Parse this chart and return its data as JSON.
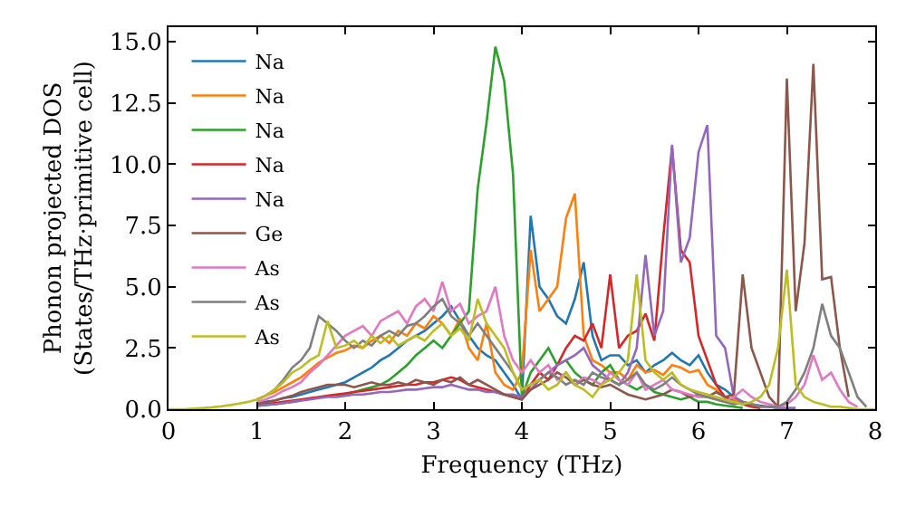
{
  "chart_data": {
    "type": "line",
    "xlabel": "Frequency (THz)",
    "ylabel": "Phonon projected DOS\n(States/THz·primitive cell)",
    "xlim": [
      0,
      8
    ],
    "ylim": [
      0,
      15.6
    ],
    "xticks": [
      0,
      1,
      2,
      3,
      4,
      5,
      6,
      7,
      8
    ],
    "yticks": [
      {
        "value": 0,
        "label": "0.0"
      },
      {
        "value": 2.5,
        "label": "2.5"
      },
      {
        "value": 5,
        "label": "5.0"
      },
      {
        "value": 7.5,
        "label": "7.5"
      },
      {
        "value": 10,
        "label": "10.0"
      },
      {
        "value": 12.5,
        "label": "12.5"
      },
      {
        "value": 15,
        "label": "15.0"
      }
    ],
    "grid": false,
    "legend": "top left",
    "marker": "none",
    "line_style": "solid",
    "x": [
      0,
      0.1,
      0.2,
      0.3,
      0.4,
      0.5,
      0.6,
      0.7,
      0.8,
      0.9,
      1,
      1.1,
      1.2,
      1.3,
      1.4,
      1.5,
      1.6,
      1.7,
      1.8,
      1.9,
      2,
      2.1,
      2.2,
      2.3,
      2.4,
      2.5,
      2.6,
      2.7,
      2.8,
      2.9,
      3,
      3.1,
      3.2,
      3.3,
      3.4,
      3.5,
      3.6,
      3.7,
      3.8,
      3.9,
      4,
      4.1,
      4.2,
      4.3,
      4.4,
      4.5,
      4.6,
      4.7,
      4.8,
      4.9,
      5,
      5.1,
      5.2,
      5.3,
      5.4,
      5.5,
      5.6,
      5.7,
      5.8,
      5.9,
      6,
      6.1,
      6.2,
      6.3,
      6.4,
      6.5,
      6.6,
      6.7,
      6.8,
      6.9,
      7,
      7.1,
      7.2,
      7.3,
      7.4,
      7.5,
      7.6,
      7.7,
      7.8,
      7.9,
      8
    ],
    "series": [
      {
        "name": "Na",
        "color": "#1f77b4",
        "values": [
          null,
          null,
          null,
          null,
          null,
          null,
          null,
          null,
          null,
          null,
          0.22,
          0.3,
          0.35,
          0.45,
          0.5,
          0.6,
          0.7,
          0.8,
          0.9,
          1.0,
          1.1,
          1.3,
          1.5,
          1.7,
          2.0,
          2.2,
          2.5,
          2.8,
          3.0,
          3.2,
          3.5,
          3.8,
          4.2,
          3.6,
          3.0,
          2.5,
          2.2,
          2.0,
          1.5,
          1.0,
          0.4,
          7.9,
          5.0,
          4.5,
          3.8,
          3.5,
          4.5,
          6.0,
          3.0,
          2.0,
          2.2,
          2.2,
          1.8,
          2.0,
          1.5,
          1.8,
          2.0,
          2.3,
          2.0,
          1.8,
          2.2,
          1.5,
          1.0,
          0.8,
          0.5,
          0.3,
          0.2,
          0.15,
          0.1,
          0.05,
          null,
          null,
          null,
          null,
          null,
          null,
          null,
          null,
          null,
          null,
          null
        ]
      },
      {
        "name": "Na",
        "color": "#ff7f0e",
        "values": [
          null,
          null,
          null,
          null,
          null,
          null,
          null,
          null,
          null,
          null,
          0.4,
          0.55,
          0.7,
          0.9,
          1.1,
          1.3,
          1.6,
          1.9,
          2.1,
          2.3,
          2.4,
          2.6,
          2.5,
          2.8,
          3.0,
          2.7,
          3.2,
          3.0,
          3.5,
          3.3,
          3.8,
          3.5,
          3.0,
          3.7,
          2.5,
          2.0,
          3.5,
          1.5,
          1.0,
          0.8,
          1.5,
          6.5,
          4.0,
          4.5,
          5.0,
          7.8,
          8.8,
          3.0,
          2.0,
          1.8,
          1.5,
          1.5,
          1.2,
          1.8,
          1.5,
          1.6,
          1.4,
          1.8,
          1.7,
          1.5,
          1.6,
          1.0,
          0.8,
          0.5,
          0.4,
          0.3,
          0.2,
          0.1,
          null,
          null,
          null,
          null,
          null,
          null,
          null,
          null,
          null,
          null,
          null,
          null,
          null
        ]
      },
      {
        "name": "Na",
        "color": "#2ca02c",
        "values": [
          null,
          null,
          null,
          null,
          null,
          null,
          null,
          null,
          null,
          null,
          0.13,
          0.17,
          0.2,
          0.25,
          0.3,
          0.35,
          null,
          null,
          null,
          0.55,
          0.6,
          0.7,
          0.8,
          0.9,
          1.0,
          1.2,
          1.5,
          1.8,
          2.2,
          2.5,
          2.8,
          2.5,
          3.0,
          3.5,
          4.0,
          9.0,
          11.7,
          14.8,
          13.4,
          9.6,
          0.5,
          1.5,
          2.0,
          2.5,
          1.8,
          2.0,
          1.5,
          1.2,
          1.0,
          1.5,
          1.8,
          1.2,
          1.0,
          0.8,
          1.0,
          0.7,
          0.6,
          0.5,
          0.4,
          0.5,
          0.3,
          0.3,
          0.2,
          0.15,
          0.1,
          0.05,
          null,
          null,
          null,
          null,
          null,
          null,
          null,
          null,
          null,
          null,
          null,
          null,
          null,
          null,
          null
        ]
      },
      {
        "name": "Na",
        "color": "#d62728",
        "values": [
          null,
          null,
          null,
          null,
          null,
          null,
          null,
          null,
          null,
          null,
          0.17,
          0.2,
          0.25,
          0.3,
          0.35,
          0.4,
          0.45,
          0.5,
          0.55,
          0.6,
          0.65,
          0.7,
          0.75,
          0.8,
          0.85,
          0.9,
          0.95,
          1.0,
          1.0,
          1.1,
          1.1,
          1.2,
          1.3,
          1.2,
          1.0,
          0.9,
          0.8,
          0.7,
          0.6,
          0.5,
          0.4,
          1.0,
          1.5,
          1.2,
          1.8,
          2.5,
          3.0,
          2.8,
          3.5,
          2.5,
          5.5,
          2.5,
          3.0,
          3.2,
          3.9,
          2.8,
          7.0,
          10.7,
          6.5,
          6.0,
          3.0,
          2.0,
          1.0,
          0.5,
          0.3,
          0.2,
          0.1,
          0.05,
          null,
          null,
          null,
          null,
          null,
          null,
          null,
          null,
          null,
          null,
          null,
          null,
          null
        ]
      },
      {
        "name": "Na",
        "color": "#9467bd",
        "values": [
          null,
          null,
          null,
          null,
          null,
          null,
          null,
          null,
          null,
          null,
          0.15,
          0.18,
          0.2,
          0.25,
          0.3,
          0.35,
          0.4,
          0.45,
          0.5,
          0.5,
          0.55,
          0.6,
          0.6,
          0.65,
          0.7,
          0.7,
          0.75,
          0.8,
          0.8,
          0.85,
          0.9,
          0.9,
          1.0,
          0.9,
          0.8,
          0.8,
          0.7,
          0.7,
          0.6,
          0.6,
          0.5,
          0.8,
          1.2,
          1.5,
          1.8,
          2.0,
          2.2,
          2.5,
          1.8,
          1.5,
          1.2,
          1.0,
          1.5,
          2.5,
          6.3,
          3.0,
          4.0,
          10.8,
          6.0,
          7.0,
          10.5,
          11.6,
          3.0,
          2.5,
          0.5,
          0.3,
          0.2,
          0.1,
          0.1,
          0.05,
          0.05,
          0.05,
          null,
          null,
          null,
          null,
          null,
          null,
          null,
          null,
          null
        ]
      },
      {
        "name": "Ge",
        "color": "#8c564b",
        "values": [
          null,
          null,
          null,
          null,
          null,
          null,
          null,
          null,
          null,
          null,
          0.22,
          0.28,
          0.35,
          0.45,
          0.55,
          0.7,
          0.8,
          0.9,
          1.0,
          1.0,
          1.0,
          0.9,
          1.0,
          1.1,
          1.0,
          1.0,
          1.1,
          1.0,
          1.2,
          1.1,
          1.0,
          1.2,
          1.1,
          1.3,
          1.0,
          1.2,
          1.0,
          0.8,
          0.6,
          0.5,
          0.4,
          0.8,
          1.0,
          1.2,
          1.5,
          1.3,
          1.0,
          1.2,
          1.0,
          0.9,
          1.0,
          0.8,
          0.6,
          0.5,
          0.4,
          0.5,
          0.6,
          0.8,
          0.7,
          0.5,
          0.6,
          0.5,
          0.7,
          0.5,
          0.6,
          5.5,
          2.5,
          1.5,
          0.5,
          0.1,
          13.5,
          4.0,
          6.8,
          14.1,
          5.3,
          5.4,
          2.5,
          0.5,
          null,
          null,
          null
        ]
      },
      {
        "name": "As",
        "color": "#e377c2",
        "values": [
          null,
          null,
          null,
          null,
          null,
          null,
          null,
          null,
          null,
          null,
          0.3,
          0.4,
          0.55,
          0.75,
          0.9,
          1.1,
          1.5,
          1.8,
          2.2,
          2.6,
          3.0,
          3.2,
          3.4,
          3.0,
          3.6,
          3.8,
          4.0,
          3.5,
          4.2,
          4.5,
          4.0,
          5.2,
          4.0,
          4.3,
          3.5,
          3.8,
          4.0,
          5.0,
          3.0,
          2.0,
          1.5,
          2.0,
          1.5,
          1.8,
          1.2,
          1.5,
          1.0,
          1.3,
          1.2,
          1.0,
          1.5,
          1.2,
          1.0,
          1.5,
          0.8,
          1.0,
          1.2,
          0.8,
          0.7,
          0.6,
          0.5,
          0.5,
          0.4,
          0.3,
          0.5,
          0.8,
          0.5,
          0.3,
          0.2,
          0.1,
          0.2,
          0.5,
          1.0,
          2.2,
          1.2,
          1.5,
          0.8,
          0.3,
          0.1,
          null,
          null
        ]
      },
      {
        "name": "As",
        "color": "#7f7f7f",
        "values": [
          null,
          null,
          null,
          null,
          null,
          null,
          null,
          null,
          null,
          null,
          0.4,
          0.55,
          0.8,
          1.2,
          1.7,
          2.0,
          2.5,
          3.8,
          3.5,
          3.2,
          2.8,
          2.5,
          2.8,
          2.6,
          3.0,
          3.2,
          3.0,
          3.4,
          3.5,
          3.8,
          4.2,
          4.5,
          3.8,
          3.5,
          3.0,
          3.5,
          3.0,
          2.5,
          2.0,
          1.5,
          0.8,
          1.0,
          1.2,
          1.5,
          1.3,
          1.0,
          1.2,
          1.0,
          1.5,
          1.3,
          1.2,
          1.0,
          1.2,
          1.5,
          1.0,
          0.8,
          1.0,
          1.3,
          1.0,
          0.8,
          0.6,
          0.5,
          0.4,
          0.3,
          0.2,
          0.3,
          0.2,
          0.1,
          0.1,
          0.1,
          0.3,
          0.8,
          1.5,
          2.5,
          4.3,
          3.0,
          2.5,
          1.5,
          0.5,
          0.1,
          null
        ]
      },
      {
        "name": "As",
        "color": "#bcbd22",
        "values": [
          0,
          0,
          0.01,
          0.03,
          0.05,
          0.08,
          0.12,
          0.17,
          0.23,
          0.3,
          0.4,
          0.55,
          0.8,
          1.1,
          1.5,
          1.7,
          2.0,
          2.2,
          3.6,
          2.5,
          2.6,
          2.8,
          2.5,
          3.0,
          2.7,
          3.0,
          2.6,
          2.8,
          3.0,
          2.8,
          3.2,
          3.5,
          3.0,
          3.3,
          2.8,
          4.5,
          3.5,
          3.0,
          2.5,
          1.5,
          0.8,
          1.0,
          1.2,
          0.8,
          1.0,
          1.5,
          1.0,
          0.8,
          0.5,
          1.0,
          1.2,
          1.5,
          2.0,
          5.5,
          2.0,
          1.5,
          1.2,
          1.5,
          1.0,
          0.8,
          0.7,
          0.6,
          0.5,
          0.4,
          0.3,
          0.2,
          0.3,
          0.5,
          1.0,
          2.5,
          5.7,
          1.0,
          0.5,
          0.3,
          0.2,
          0.1,
          0.1,
          0.05,
          0,
          0,
          0
        ]
      }
    ]
  }
}
